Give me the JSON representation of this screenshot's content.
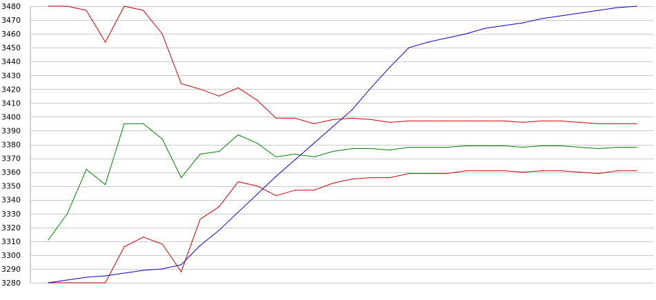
{
  "chart_data": {
    "type": "line",
    "title": "",
    "xlabel": "",
    "ylabel": "",
    "ylim": [
      3280,
      3480
    ],
    "yticks": [
      3280,
      3290,
      3300,
      3310,
      3320,
      3330,
      3340,
      3350,
      3360,
      3370,
      3380,
      3390,
      3400,
      3410,
      3420,
      3430,
      3440,
      3450,
      3460,
      3470,
      3480
    ],
    "grid": true,
    "legend": "none",
    "x": [
      0,
      1,
      2,
      3,
      4,
      5,
      6,
      7,
      8,
      9,
      10,
      11,
      12,
      13,
      14,
      15,
      16,
      17,
      18,
      19,
      20,
      21,
      22,
      23,
      24,
      25,
      26,
      27,
      28,
      29,
      30,
      31
    ],
    "series": [
      {
        "color": "#cc0000",
        "values": [
          3480,
          3480,
          3477,
          3454,
          3480,
          3477,
          3460,
          3424,
          3420,
          3415,
          3421,
          3412,
          3399,
          3399,
          3395,
          3398,
          3399,
          3398,
          3396,
          3397,
          3397,
          3397,
          3397,
          3397,
          3397,
          3396,
          3397,
          3397,
          3396,
          3395,
          3395,
          3395
        ]
      },
      {
        "color": "#008000",
        "values": [
          3311,
          3330,
          3362,
          3351,
          3395,
          3395,
          3384,
          3356,
          3373,
          3375,
          3387,
          3381,
          3371,
          3373,
          3371,
          3375,
          3377,
          3377,
          3376,
          3378,
          3378,
          3378,
          3379,
          3379,
          3379,
          3378,
          3379,
          3379,
          3378,
          3377,
          3378,
          3378
        ]
      },
      {
        "color": "#cc0000",
        "values": [
          3280,
          3280,
          3280,
          3280,
          3306,
          3313,
          3308,
          3288,
          3326,
          3335,
          3353,
          3350,
          3343,
          3347,
          3347,
          3352,
          3355,
          3356,
          3356,
          3359,
          3359,
          3359,
          3361,
          3361,
          3361,
          3360,
          3361,
          3361,
          3360,
          3359,
          3361,
          3361
        ]
      },
      {
        "color": "#0000cc",
        "values": [
          3280,
          3282,
          3284,
          3285,
          3287,
          3289,
          3290,
          3293,
          3307,
          3318,
          3331,
          3344,
          3357,
          3369,
          3381,
          3393,
          3405,
          3421,
          3436,
          3450,
          3454,
          3457,
          3460,
          3464,
          3466,
          3468,
          3471,
          3473,
          3475,
          3477,
          3479,
          3480
        ]
      }
    ]
  }
}
